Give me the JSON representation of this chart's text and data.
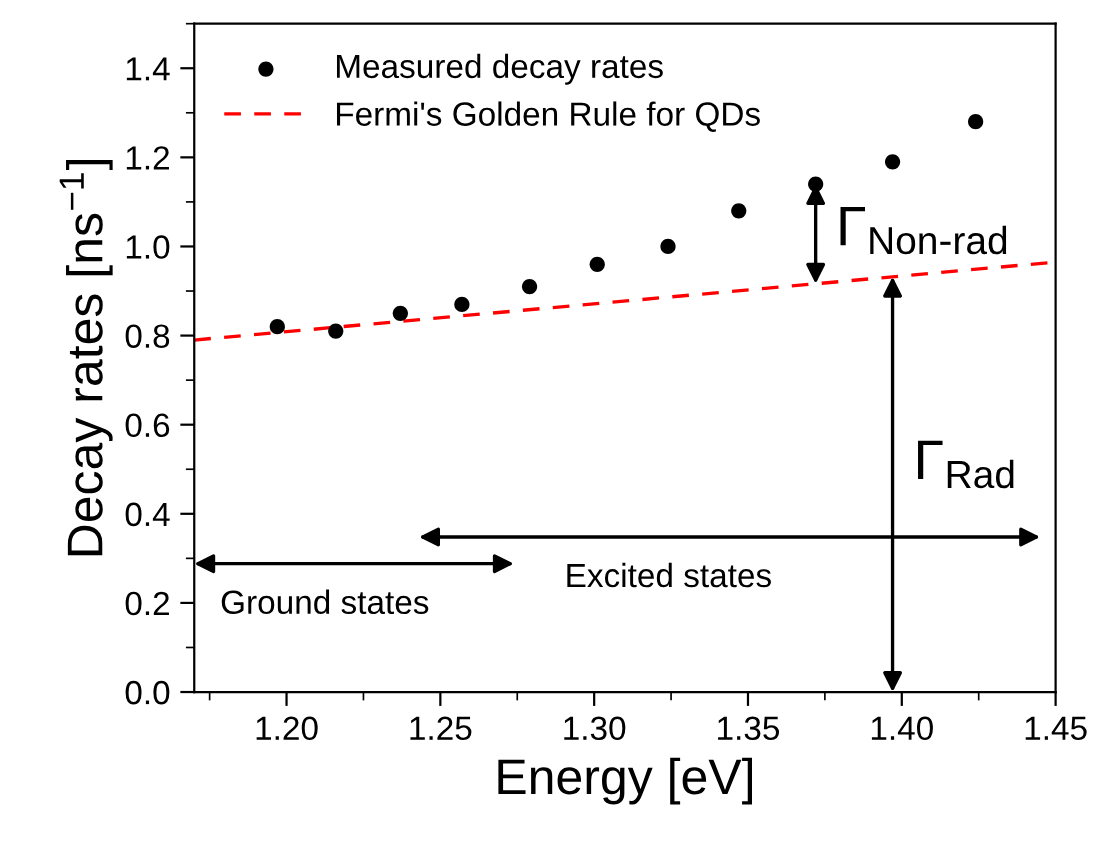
{
  "chart_data": {
    "type": "scatter",
    "xlabel": "Energy [eV]",
    "ylabel": "Decay rates [ns$^{−1}$]",
    "series": [
      {
        "name": "Measured decay rates",
        "color": "#000000",
        "marker": "circle",
        "x": [
          1.197,
          1.216,
          1.237,
          1.257,
          1.279,
          1.301,
          1.324,
          1.347,
          1.372,
          1.397,
          1.424
        ],
        "values": [
          0.82,
          0.81,
          0.85,
          0.87,
          0.91,
          0.96,
          1.0,
          1.08,
          1.14,
          1.19,
          1.28
        ]
      },
      {
        "name": "Fermi's Golden Rule for QDs",
        "type": "line",
        "color": "#ff0000",
        "line_style": "dashed",
        "marker": "none",
        "x": [
          1.17,
          1.45
        ],
        "values": [
          0.79,
          0.965
        ]
      }
    ],
    "annotations": [
      "Γ$_{Non-rad}$",
      "Γ$_{Rad}$",
      "Ground states",
      "Excited states"
    ],
    "xlim": [
      1.17,
      1.45
    ],
    "ylim": [
      0,
      1.5
    ],
    "xticks": [
      {
        "value": 1.2,
        "label": "1.20"
      },
      {
        "value": 1.25,
        "label": "1.25"
      },
      {
        "value": 1.3,
        "label": "1.30"
      },
      {
        "value": 1.35,
        "label": "1.35"
      },
      {
        "value": 1.4,
        "label": "1.40"
      },
      {
        "value": 1.45,
        "label": "1.45"
      }
    ],
    "yticks": [
      {
        "value": 0,
        "label": "0.0"
      },
      {
        "value": 0.2,
        "label": "0.2"
      },
      {
        "value": 0.4,
        "label": "0.4"
      },
      {
        "value": 0.6,
        "label": "0.6"
      },
      {
        "value": 0.8,
        "label": "0.8"
      },
      {
        "value": 1.0,
        "label": "1.0"
      },
      {
        "value": 1.2,
        "label": "1.2"
      },
      {
        "value": 1.4,
        "label": "1.4"
      }
    ],
    "grid": false,
    "legend": "top left"
  }
}
